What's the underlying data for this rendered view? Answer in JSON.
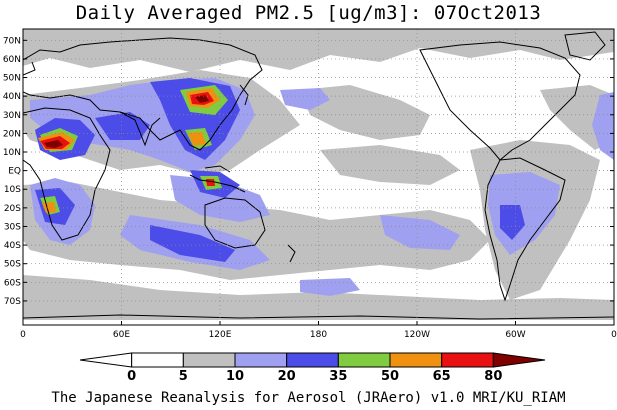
{
  "title": "Daily Averaged PM2.5 [ug/m3]: 07Oct2013",
  "footer": "The Japanese Reanalysis for Aerosol (JRAero) v1.0 MRI/KU_RIAM",
  "lat_labels": [
    "70N",
    "60N",
    "50N",
    "40N",
    "30N",
    "20N",
    "10N",
    "EQ",
    "10S",
    "20S",
    "30S",
    "40S",
    "50S",
    "60S",
    "70S"
  ],
  "lon_labels": [
    "0",
    "60E",
    "120E",
    "180",
    "120W",
    "60W",
    "0"
  ],
  "colorbar": {
    "labels": [
      "0",
      "5",
      "10",
      "20",
      "35",
      "50",
      "65",
      "80"
    ],
    "colors": [
      "#ffffff",
      "#ffffff",
      "#c0c0c0",
      "#a0a0f0",
      "#4c4ce8",
      "#80cc40",
      "#f09010",
      "#e81010",
      "#800000"
    ]
  }
}
